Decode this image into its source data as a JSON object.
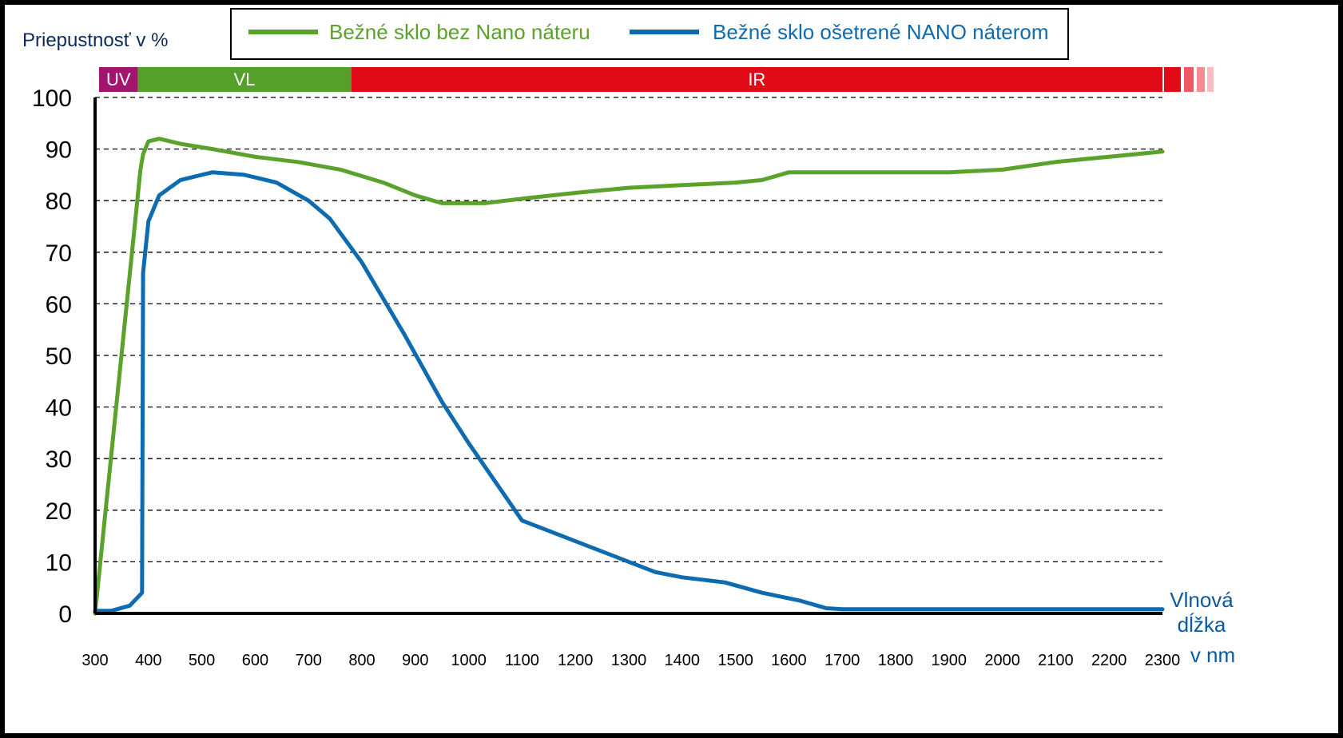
{
  "chart_data": {
    "type": "line",
    "title": "",
    "ylabel": "Priepustnosť v %",
    "xlabel": [
      "Vlnová",
      "dĺžka",
      "v nm"
    ],
    "xlim": [
      300,
      2300
    ],
    "ylim": [
      0,
      100
    ],
    "x_ticks": [
      300,
      400,
      500,
      600,
      700,
      800,
      900,
      1000,
      1100,
      1200,
      1300,
      1400,
      1500,
      1600,
      1700,
      1800,
      1900,
      2000,
      2100,
      2200,
      2300
    ],
    "y_ticks": [
      0,
      10,
      20,
      30,
      40,
      50,
      60,
      70,
      80,
      90,
      100
    ],
    "grid": "horizontal-dashed",
    "legend_position": "top",
    "bands": [
      {
        "label": "UV",
        "from": 300,
        "to": 380,
        "color": "#a4146f"
      },
      {
        "label": "VL",
        "from": 380,
        "to": 780,
        "color": "#55a02a"
      },
      {
        "label": "IR",
        "from": 780,
        "to": 2300,
        "color": "#e30a18"
      }
    ],
    "series": [
      {
        "name": "Bežné sklo bez Nano náteru",
        "color": "#5aa22c",
        "x": [
          300,
          385,
          390,
          400,
          420,
          460,
          520,
          600,
          680,
          760,
          840,
          900,
          950,
          1030,
          1110,
          1200,
          1300,
          1400,
          1500,
          1550,
          1600,
          1700,
          1800,
          1900,
          2000,
          2100,
          2200,
          2300
        ],
        "y": [
          0,
          86,
          89,
          91.5,
          92,
          91,
          90,
          88.5,
          87.5,
          86,
          83.5,
          81,
          79.5,
          79.5,
          80.5,
          81.5,
          82.5,
          83,
          83.5,
          84,
          85.5,
          85.5,
          85.5,
          85.5,
          86,
          87.5,
          88.5,
          89.5
        ]
      },
      {
        "name": "Bežné sklo ošetrené NANO náterom",
        "color": "#0e6bb0",
        "x": [
          300,
          330,
          365,
          388,
          390,
          400,
          420,
          460,
          520,
          580,
          640,
          700,
          740,
          800,
          880,
          950,
          1000,
          1100,
          1200,
          1300,
          1350,
          1400,
          1480,
          1550,
          1620,
          1670,
          1700,
          1800,
          1900,
          2000,
          2100,
          2200,
          2300
        ],
        "y": [
          0.5,
          0.5,
          1.5,
          4,
          66,
          76,
          81,
          84,
          85.5,
          85,
          83.5,
          80,
          76.5,
          68,
          54,
          41,
          33,
          18,
          14,
          10,
          8,
          7,
          6,
          4,
          2.5,
          1,
          0.8,
          0.8,
          0.8,
          0.8,
          0.8,
          0.8,
          0.8
        ]
      }
    ]
  }
}
